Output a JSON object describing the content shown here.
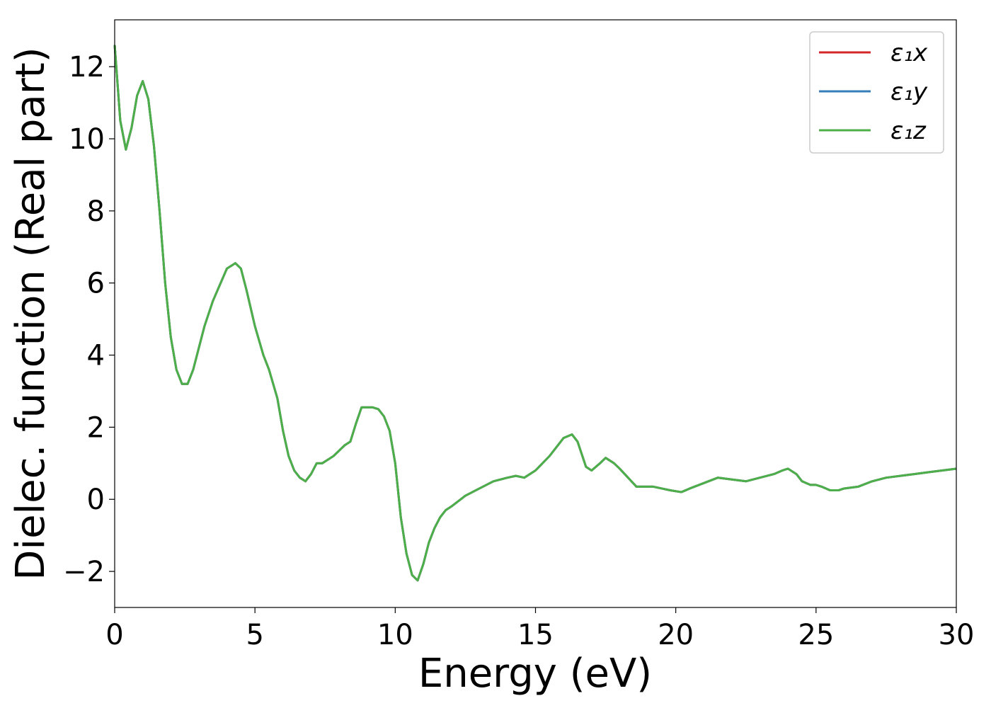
{
  "chart_data": {
    "type": "line",
    "title": "",
    "xlabel": "Energy (eV)",
    "ylabel": "Dielec. function (Real part)",
    "xlim": [
      0,
      30
    ],
    "ylim": [
      -3,
      13.3
    ],
    "xticks": [
      0,
      5,
      10,
      15,
      20,
      25,
      30
    ],
    "yticks": [
      -2,
      0,
      2,
      4,
      6,
      8,
      10,
      12
    ],
    "grid": false,
    "legend_position": "top-right",
    "x": [
      0,
      0.2,
      0.4,
      0.6,
      0.8,
      1.0,
      1.2,
      1.4,
      1.6,
      1.8,
      2.0,
      2.2,
      2.4,
      2.6,
      2.8,
      3.0,
      3.2,
      3.5,
      4.0,
      4.3,
      4.5,
      4.7,
      5.0,
      5.3,
      5.5,
      5.8,
      6.0,
      6.2,
      6.4,
      6.6,
      6.8,
      7.0,
      7.2,
      7.4,
      7.6,
      7.8,
      8.0,
      8.2,
      8.4,
      8.6,
      8.8,
      9.0,
      9.2,
      9.4,
      9.6,
      9.8,
      10.0,
      10.2,
      10.4,
      10.6,
      10.8,
      11.0,
      11.2,
      11.4,
      11.6,
      11.8,
      12.0,
      12.5,
      13.0,
      13.5,
      14.0,
      14.3,
      14.6,
      15.0,
      15.5,
      16.0,
      16.3,
      16.5,
      16.8,
      17.0,
      17.3,
      17.5,
      17.8,
      18.0,
      18.3,
      18.6,
      18.9,
      19.2,
      19.5,
      19.8,
      20.2,
      20.5,
      21.0,
      21.5,
      22.0,
      22.5,
      23.0,
      23.5,
      23.8,
      24.0,
      24.3,
      24.5,
      24.8,
      25.0,
      25.2,
      25.5,
      25.8,
      26.0,
      26.5,
      27.0,
      27.5,
      28.0,
      28.5,
      29.0,
      29.5,
      30.0
    ],
    "series": [
      {
        "name": "ε₁x",
        "color": "#d62728",
        "values": [
          12.6,
          10.5,
          9.7,
          10.3,
          11.2,
          11.6,
          11.1,
          9.8,
          8.0,
          6.0,
          4.5,
          3.6,
          3.2,
          3.2,
          3.6,
          4.2,
          4.8,
          5.5,
          6.4,
          6.55,
          6.4,
          5.8,
          4.8,
          4.0,
          3.6,
          2.8,
          1.9,
          1.2,
          0.8,
          0.6,
          0.5,
          0.7,
          1.0,
          1.0,
          1.1,
          1.2,
          1.35,
          1.5,
          1.6,
          2.1,
          2.55,
          2.55,
          2.55,
          2.5,
          2.3,
          1.9,
          1.0,
          -0.5,
          -1.5,
          -2.1,
          -2.25,
          -1.8,
          -1.2,
          -0.8,
          -0.5,
          -0.3,
          -0.2,
          0.1,
          0.3,
          0.5,
          0.6,
          0.65,
          0.6,
          0.8,
          1.2,
          1.7,
          1.8,
          1.6,
          0.9,
          0.8,
          1.0,
          1.15,
          1.0,
          0.85,
          0.6,
          0.35,
          0.35,
          0.35,
          0.3,
          0.25,
          0.2,
          0.3,
          0.45,
          0.6,
          0.55,
          0.5,
          0.6,
          0.7,
          0.8,
          0.85,
          0.7,
          0.5,
          0.4,
          0.4,
          0.35,
          0.25,
          0.25,
          0.3,
          0.35,
          0.5,
          0.6,
          0.65,
          0.7,
          0.75,
          0.8,
          0.85
        ]
      },
      {
        "name": "ε₁y",
        "color": "#377eb8",
        "values": [
          12.6,
          10.5,
          9.7,
          10.3,
          11.2,
          11.6,
          11.1,
          9.8,
          8.0,
          6.0,
          4.5,
          3.6,
          3.2,
          3.2,
          3.6,
          4.2,
          4.8,
          5.5,
          6.4,
          6.55,
          6.4,
          5.8,
          4.8,
          4.0,
          3.6,
          2.8,
          1.9,
          1.2,
          0.8,
          0.6,
          0.5,
          0.7,
          1.0,
          1.0,
          1.1,
          1.2,
          1.35,
          1.5,
          1.6,
          2.1,
          2.55,
          2.55,
          2.55,
          2.5,
          2.3,
          1.9,
          1.0,
          -0.5,
          -1.5,
          -2.1,
          -2.25,
          -1.8,
          -1.2,
          -0.8,
          -0.5,
          -0.3,
          -0.2,
          0.1,
          0.3,
          0.5,
          0.6,
          0.65,
          0.6,
          0.8,
          1.2,
          1.7,
          1.8,
          1.6,
          0.9,
          0.8,
          1.0,
          1.15,
          1.0,
          0.85,
          0.6,
          0.35,
          0.35,
          0.35,
          0.3,
          0.25,
          0.2,
          0.3,
          0.45,
          0.6,
          0.55,
          0.5,
          0.6,
          0.7,
          0.8,
          0.85,
          0.7,
          0.5,
          0.4,
          0.4,
          0.35,
          0.25,
          0.25,
          0.3,
          0.35,
          0.5,
          0.6,
          0.65,
          0.7,
          0.75,
          0.8,
          0.85
        ]
      },
      {
        "name": "ε₁z",
        "color": "#4daf4a",
        "values": [
          12.6,
          10.5,
          9.7,
          10.3,
          11.2,
          11.6,
          11.1,
          9.8,
          8.0,
          6.0,
          4.5,
          3.6,
          3.2,
          3.2,
          3.6,
          4.2,
          4.8,
          5.5,
          6.4,
          6.55,
          6.4,
          5.8,
          4.8,
          4.0,
          3.6,
          2.8,
          1.9,
          1.2,
          0.8,
          0.6,
          0.5,
          0.7,
          1.0,
          1.0,
          1.1,
          1.2,
          1.35,
          1.5,
          1.6,
          2.1,
          2.55,
          2.55,
          2.55,
          2.5,
          2.3,
          1.9,
          1.0,
          -0.5,
          -1.5,
          -2.1,
          -2.25,
          -1.8,
          -1.2,
          -0.8,
          -0.5,
          -0.3,
          -0.2,
          0.1,
          0.3,
          0.5,
          0.6,
          0.65,
          0.6,
          0.8,
          1.2,
          1.7,
          1.8,
          1.6,
          0.9,
          0.8,
          1.0,
          1.15,
          1.0,
          0.85,
          0.6,
          0.35,
          0.35,
          0.35,
          0.3,
          0.25,
          0.2,
          0.3,
          0.45,
          0.6,
          0.55,
          0.5,
          0.6,
          0.7,
          0.8,
          0.85,
          0.7,
          0.5,
          0.4,
          0.4,
          0.35,
          0.25,
          0.25,
          0.3,
          0.35,
          0.5,
          0.6,
          0.65,
          0.7,
          0.75,
          0.8,
          0.85
        ]
      }
    ]
  }
}
